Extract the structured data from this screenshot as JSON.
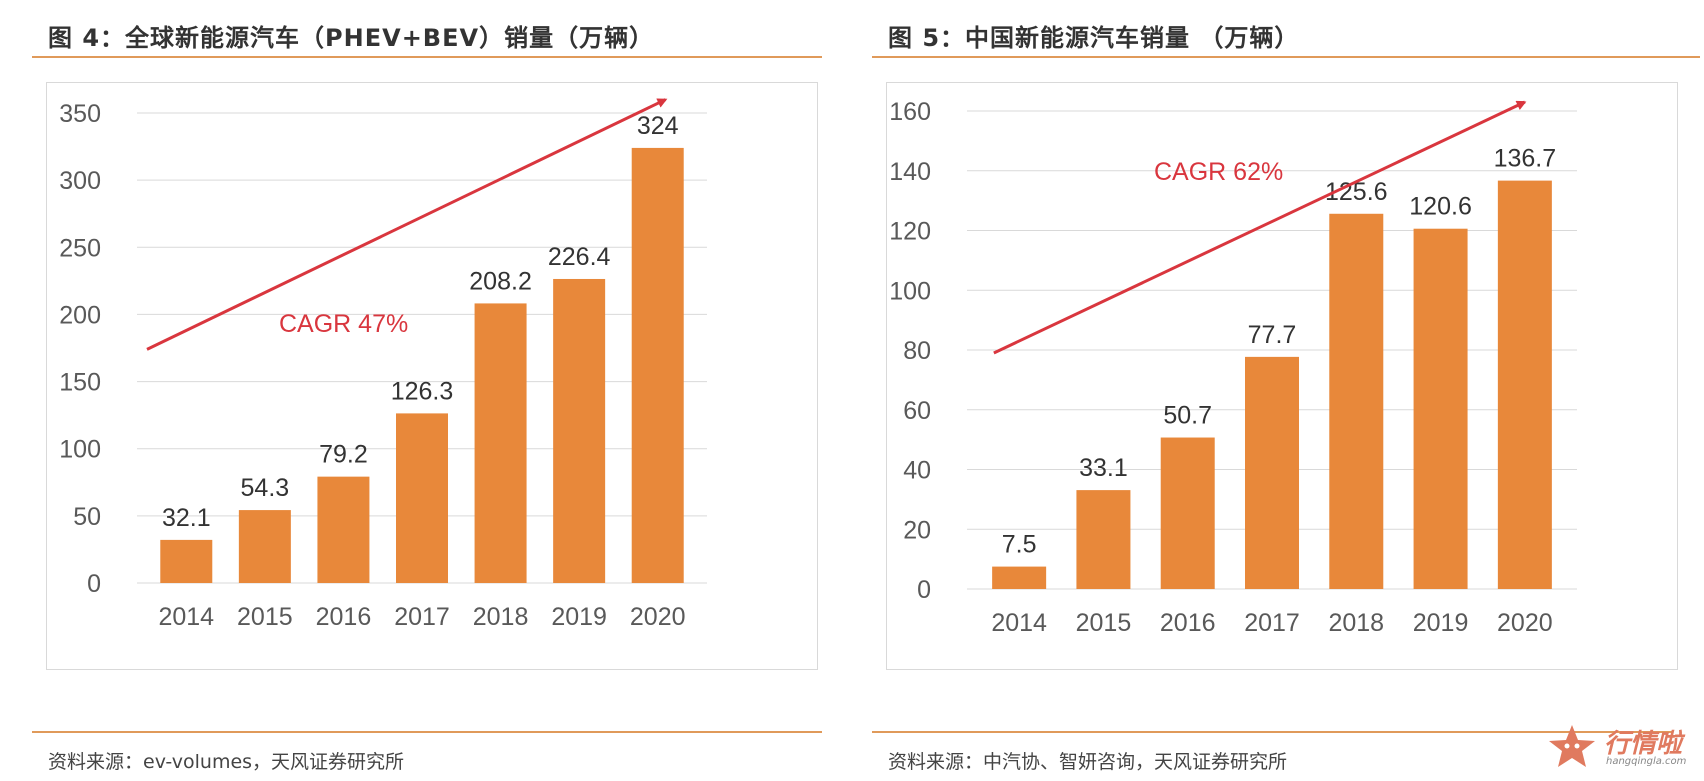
{
  "figures": [
    {
      "title": "图 4：全球新能源汽车（PHEV+BEV）销量（万辆）",
      "source": "资料来源：ev-volumes，天风证券研究所"
    },
    {
      "title": "图 5：中国新能源汽车销量 （万辆）",
      "source": "资料来源：中汽协、智妍咨询，天风证券研究所"
    }
  ],
  "watermark": {
    "text": "行情啦",
    "sub": "hangqingla.com"
  },
  "colors": {
    "bar": "#E8883A",
    "arrow": "#D9363E",
    "grid": "#d9d9d9",
    "rule": "#e09a5a"
  },
  "chart_data": [
    {
      "type": "bar",
      "title": "全球新能源汽车（PHEV+BEV）销量（万辆）",
      "categories": [
        "2014",
        "2015",
        "2016",
        "2017",
        "2018",
        "2019",
        "2020"
      ],
      "values": [
        32.1,
        54.3,
        79.2,
        126.3,
        208.2,
        226.4,
        324
      ],
      "value_labels": [
        "32.1",
        "54.3",
        "79.2",
        "126.3",
        "208.2",
        "226.4",
        "324"
      ],
      "ylim": [
        0,
        350
      ],
      "yticks": [
        0,
        50,
        100,
        150,
        200,
        250,
        300,
        350
      ],
      "grid": true,
      "annotation": {
        "text": "CAGR 47%",
        "arrow_from": [
          0,
          174
        ],
        "arrow_to": [
          6.6,
          360
        ]
      }
    },
    {
      "type": "bar",
      "title": "中国新能源汽车销量（万辆）",
      "categories": [
        "2014",
        "2015",
        "2016",
        "2017",
        "2018",
        "2019",
        "2020"
      ],
      "values": [
        7.5,
        33.1,
        50.7,
        77.7,
        125.6,
        120.6,
        136.7
      ],
      "value_labels": [
        "7.5",
        "33.1",
        "50.7",
        "77.7",
        "125.6",
        "120.6",
        "136.7"
      ],
      "ylim": [
        0,
        160
      ],
      "yticks": [
        0,
        20,
        40,
        60,
        80,
        100,
        120,
        140,
        160
      ],
      "grid": true,
      "annotation": {
        "text": "CAGR 62%",
        "arrow_from": [
          0.2,
          79
        ],
        "arrow_to": [
          6.5,
          163
        ]
      }
    }
  ]
}
